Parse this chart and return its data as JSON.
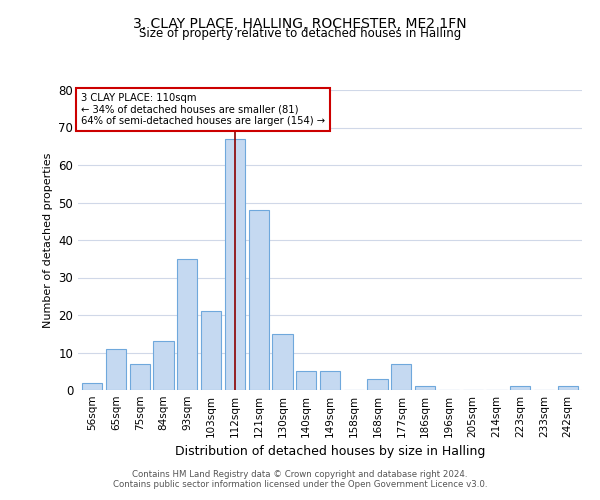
{
  "title": "3, CLAY PLACE, HALLING, ROCHESTER, ME2 1FN",
  "subtitle": "Size of property relative to detached houses in Halling",
  "xlabel": "Distribution of detached houses by size in Halling",
  "ylabel": "Number of detached properties",
  "footnote1": "Contains HM Land Registry data © Crown copyright and database right 2024.",
  "footnote2": "Contains public sector information licensed under the Open Government Licence v3.0.",
  "bar_labels": [
    "56sqm",
    "65sqm",
    "75sqm",
    "84sqm",
    "93sqm",
    "103sqm",
    "112sqm",
    "121sqm",
    "130sqm",
    "140sqm",
    "149sqm",
    "158sqm",
    "168sqm",
    "177sqm",
    "186sqm",
    "196sqm",
    "205sqm",
    "214sqm",
    "223sqm",
    "233sqm",
    "242sqm"
  ],
  "bar_values": [
    2,
    11,
    7,
    13,
    35,
    21,
    67,
    48,
    15,
    5,
    5,
    0,
    3,
    7,
    1,
    0,
    0,
    0,
    1,
    0,
    1
  ],
  "bar_color": "#c5d9f1",
  "bar_edge_color": "#6fa8dc",
  "highlight_bar_index": 6,
  "highlight_line_color": "#8b0000",
  "ylim": [
    0,
    80
  ],
  "yticks": [
    0,
    10,
    20,
    30,
    40,
    50,
    60,
    70,
    80
  ],
  "annotation_text": "3 CLAY PLACE: 110sqm\n← 34% of detached houses are smaller (81)\n64% of semi-detached houses are larger (154) →",
  "annotation_box_color": "#ffffff",
  "annotation_box_edge": "#cc0000",
  "background_color": "#ffffff",
  "grid_color": "#d0d8e8"
}
